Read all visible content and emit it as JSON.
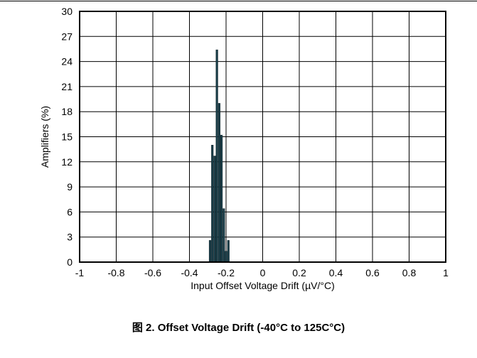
{
  "caption": "图 2. Offset Voltage Drift (-40°C to 125C°C)",
  "chart_data": {
    "type": "bar",
    "title": "",
    "xlabel": "Input Offset Voltage Drift (µV/°C)",
    "ylabel": "Amplifiers (%)",
    "xlim": [
      -1,
      1
    ],
    "ylim": [
      0,
      30
    ],
    "xticks": [
      "-1",
      "-0.8",
      "-0.6",
      "-0.4",
      "-0.2",
      "0",
      "0.2",
      "0.4",
      "0.6",
      "0.8",
      "1"
    ],
    "yticks": [
      "0",
      "3",
      "6",
      "9",
      "12",
      "15",
      "18",
      "21",
      "24",
      "27",
      "30"
    ],
    "grid": true,
    "bin_width": 0.0125,
    "bins": [
      {
        "x": -0.2925,
        "y": 2.6
      },
      {
        "x": -0.28,
        "y": 14.0
      },
      {
        "x": -0.2675,
        "y": 12.7
      },
      {
        "x": -0.255,
        "y": 25.4
      },
      {
        "x": -0.2425,
        "y": 19.0
      },
      {
        "x": -0.23,
        "y": 15.2
      },
      {
        "x": -0.2175,
        "y": 6.4
      },
      {
        "x": -0.205,
        "y": 1.3
      },
      {
        "x": -0.1925,
        "y": 2.6
      }
    ],
    "colors": {
      "bar": "#1a3f4a",
      "grid": "#000000",
      "axis": "#000000"
    }
  }
}
